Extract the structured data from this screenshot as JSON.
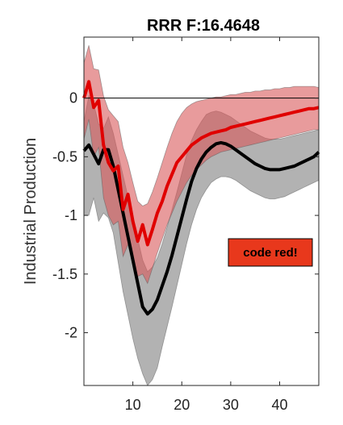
{
  "chart_data": {
    "type": "line",
    "title": "RRR F:16.4648",
    "ylabel": "Industrial Production",
    "xlabel": "",
    "xlim": [
      0,
      48
    ],
    "ylim": [
      -2.45,
      0.52
    ],
    "xticks": [
      10,
      20,
      30,
      40
    ],
    "yticks": [
      0,
      -0.5,
      -1,
      -1.5,
      -2
    ],
    "ytick_labels": [
      "0",
      "-0.5",
      "-1",
      "-1.5",
      "-2"
    ],
    "zero_line": true,
    "grid": false,
    "annotation": {
      "text": "code red!",
      "background": "#e8381c"
    },
    "series": [
      {
        "color": "#000000",
        "band_color": "#7f7f7f",
        "x": [
          0,
          1,
          2,
          3,
          4,
          5,
          6,
          7,
          8,
          9,
          10,
          11,
          12,
          13,
          14,
          15,
          16,
          17,
          18,
          19,
          20,
          21,
          22,
          23,
          24,
          25,
          26,
          27,
          28,
          29,
          30,
          31,
          32,
          33,
          34,
          35,
          36,
          37,
          38,
          39,
          40,
          41,
          42,
          43,
          44,
          45,
          46,
          47,
          48
        ],
        "y": [
          -0.45,
          -0.4,
          -0.48,
          -0.56,
          -0.44,
          -0.44,
          -0.58,
          -0.78,
          -0.98,
          -1.18,
          -1.38,
          -1.58,
          -1.78,
          -1.84,
          -1.8,
          -1.72,
          -1.6,
          -1.48,
          -1.34,
          -1.18,
          -1.02,
          -0.86,
          -0.71,
          -0.6,
          -0.52,
          -0.46,
          -0.42,
          -0.39,
          -0.38,
          -0.39,
          -0.41,
          -0.44,
          -0.47,
          -0.5,
          -0.53,
          -0.56,
          -0.58,
          -0.6,
          -0.61,
          -0.61,
          -0.61,
          -0.6,
          -0.59,
          -0.58,
          -0.56,
          -0.54,
          -0.52,
          -0.5,
          -0.46
        ],
        "upper": [
          -0.2,
          0.02,
          -0.05,
          -0.22,
          -0.26,
          -0.16,
          -0.3,
          -0.48,
          -0.66,
          -0.84,
          -1.02,
          -1.2,
          -1.38,
          -1.48,
          -1.44,
          -1.36,
          -1.24,
          -1.1,
          -0.95,
          -0.8,
          -0.64,
          -0.48,
          -0.36,
          -0.27,
          -0.2,
          -0.14,
          -0.12,
          -0.11,
          -0.12,
          -0.14,
          -0.16,
          -0.19,
          -0.22,
          -0.25,
          -0.28,
          -0.3,
          -0.32,
          -0.34,
          -0.35,
          -0.35,
          -0.35,
          -0.34,
          -0.33,
          -0.32,
          -0.31,
          -0.3,
          -0.29,
          -0.28,
          -0.27
        ],
        "lower": [
          -1.0,
          -1.0,
          -0.85,
          -1.05,
          -0.98,
          -1.02,
          -1.15,
          -1.4,
          -1.65,
          -1.85,
          -2.05,
          -2.22,
          -2.35,
          -2.45,
          -2.4,
          -2.3,
          -2.12,
          -1.95,
          -1.78,
          -1.6,
          -1.42,
          -1.24,
          -1.08,
          -0.95,
          -0.85,
          -0.78,
          -0.72,
          -0.69,
          -0.67,
          -0.67,
          -0.68,
          -0.7,
          -0.73,
          -0.76,
          -0.79,
          -0.81,
          -0.83,
          -0.85,
          -0.86,
          -0.86,
          -0.85,
          -0.84,
          -0.82,
          -0.8,
          -0.78,
          -0.76,
          -0.74,
          -0.72,
          -0.7
        ]
      },
      {
        "color": "#e00000",
        "band_color": "#d9585a",
        "x": [
          0,
          1,
          2,
          3,
          4,
          5,
          6,
          7,
          8,
          9,
          10,
          11,
          12,
          13,
          14,
          15,
          16,
          17,
          18,
          19,
          20,
          21,
          22,
          23,
          24,
          25,
          26,
          27,
          28,
          29,
          30,
          31,
          32,
          33,
          34,
          35,
          36,
          37,
          38,
          39,
          40,
          41,
          42,
          43,
          44,
          45,
          46,
          47,
          48
        ],
        "y": [
          0.0,
          0.14,
          -0.08,
          -0.02,
          -0.4,
          -0.55,
          -0.62,
          -0.58,
          -0.95,
          -0.82,
          -1.05,
          -1.22,
          -1.08,
          -1.25,
          -1.12,
          -0.98,
          -0.88,
          -0.75,
          -0.65,
          -0.55,
          -0.5,
          -0.45,
          -0.4,
          -0.37,
          -0.34,
          -0.32,
          -0.3,
          -0.29,
          -0.28,
          -0.27,
          -0.25,
          -0.24,
          -0.23,
          -0.22,
          -0.21,
          -0.2,
          -0.19,
          -0.18,
          -0.17,
          -0.16,
          -0.15,
          -0.14,
          -0.13,
          -0.12,
          -0.11,
          -0.1,
          -0.09,
          -0.09,
          -0.08
        ],
        "upper": [
          0.3,
          0.45,
          0.25,
          0.24,
          0.02,
          -0.1,
          -0.15,
          -0.2,
          -0.42,
          -0.55,
          -0.72,
          -0.88,
          -0.92,
          -0.9,
          -0.8,
          -0.68,
          -0.55,
          -0.42,
          -0.3,
          -0.2,
          -0.13,
          -0.08,
          -0.05,
          -0.03,
          -0.02,
          -0.01,
          0.0,
          0.01,
          0.01,
          0.02,
          0.03,
          0.03,
          0.04,
          0.05,
          0.05,
          0.06,
          0.06,
          0.07,
          0.07,
          0.08,
          0.08,
          0.09,
          0.09,
          0.1,
          0.1,
          0.1,
          0.1,
          0.1,
          0.09
        ],
        "lower": [
          -0.35,
          -0.18,
          -0.5,
          -0.42,
          -0.85,
          -1.0,
          -1.08,
          -1.05,
          -1.35,
          -1.25,
          -1.42,
          -1.52,
          -1.5,
          -1.58,
          -1.45,
          -1.32,
          -1.2,
          -1.08,
          -0.98,
          -0.88,
          -0.8,
          -0.72,
          -0.66,
          -0.61,
          -0.57,
          -0.53,
          -0.5,
          -0.48,
          -0.46,
          -0.45,
          -0.44,
          -0.43,
          -0.42,
          -0.41,
          -0.4,
          -0.39,
          -0.38,
          -0.37,
          -0.36,
          -0.35,
          -0.34,
          -0.33,
          -0.32,
          -0.31,
          -0.3,
          -0.29,
          -0.28,
          -0.27,
          -0.27
        ]
      }
    ]
  }
}
